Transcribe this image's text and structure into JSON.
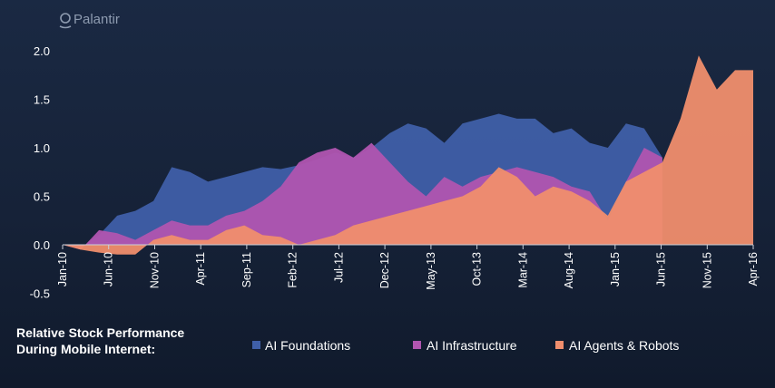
{
  "brand": {
    "logo_text": "Palantir",
    "logo_icon": "palantir-logo-icon"
  },
  "caption": {
    "line1": "Relative Stock Performance",
    "line2": "During Mobile Internet:"
  },
  "colors": {
    "background": "#16233a",
    "ai_foundations": "#3f5fa8",
    "ai_infrastructure": "#b055b0",
    "ai_agents_robots": "#f08e6d"
  },
  "chart_data": {
    "type": "area",
    "title": "",
    "xlabel": "",
    "ylabel": "",
    "ylim": [
      -0.5,
      2.0
    ],
    "y_ticks": [
      "2.0",
      "1.5",
      "1.0",
      "0.5",
      "0.0",
      "-0.5"
    ],
    "y_tick_values": [
      2.0,
      1.5,
      1.0,
      0.5,
      0.0,
      -0.5
    ],
    "x_ticks": [
      "Jan-10",
      "Jun-10",
      "Nov-10",
      "Apr-11",
      "Sep-11",
      "Feb-12",
      "Jul-12",
      "Dec-12",
      "May-13",
      "Oct-13",
      "Mar-14",
      "Aug-14",
      "Jan-15",
      "Jun-15",
      "Nov-15",
      "Apr-16"
    ],
    "x": [
      "Jan-10",
      "Mar-10",
      "May-10",
      "Jul-10",
      "Sep-10",
      "Nov-10",
      "Jan-11",
      "Mar-11",
      "May-11",
      "Jul-11",
      "Sep-11",
      "Nov-11",
      "Jan-12",
      "Mar-12",
      "May-12",
      "Jul-12",
      "Sep-12",
      "Nov-12",
      "Jan-13",
      "Mar-13",
      "May-13",
      "Jul-13",
      "Sep-13",
      "Nov-13",
      "Jan-14",
      "Mar-14",
      "May-14",
      "Jul-14",
      "Sep-14",
      "Nov-14",
      "Jan-15",
      "Mar-15",
      "May-15",
      "Jul-15",
      "Sep-15",
      "Nov-15",
      "Jan-16",
      "Mar-16",
      "Apr-16"
    ],
    "grid": false,
    "legend_position": "bottom",
    "series": [
      {
        "name": "AI Foundations",
        "color": "#3f5fa8",
        "values": [
          0.0,
          -0.03,
          0.1,
          0.3,
          0.35,
          0.45,
          0.8,
          0.75,
          0.65,
          0.7,
          0.75,
          0.8,
          0.78,
          0.82,
          0.88,
          0.95,
          0.9,
          1.0,
          1.15,
          1.25,
          1.2,
          1.05,
          1.25,
          1.3,
          1.35,
          1.3,
          1.3,
          1.15,
          1.2,
          1.05,
          1.0,
          1.25,
          1.2,
          0.9,
          null,
          null,
          null,
          null,
          null
        ]
      },
      {
        "name": "AI Infrastructure",
        "color": "#b055b0",
        "values": [
          0.0,
          -0.05,
          0.15,
          0.12,
          0.05,
          0.15,
          0.25,
          0.2,
          0.2,
          0.3,
          0.35,
          0.45,
          0.6,
          0.85,
          0.95,
          1.0,
          0.9,
          1.05,
          0.85,
          0.65,
          0.5,
          0.7,
          0.6,
          0.7,
          0.75,
          0.8,
          0.75,
          0.7,
          0.6,
          0.55,
          0.25,
          0.65,
          1.0,
          0.9,
          null,
          null,
          null,
          null,
          null
        ]
      },
      {
        "name": "AI Agents & Robots",
        "color": "#f08e6d",
        "values": [
          0.0,
          -0.05,
          -0.08,
          -0.1,
          -0.1,
          0.05,
          0.1,
          0.05,
          0.05,
          0.15,
          0.2,
          0.1,
          0.08,
          0.0,
          0.05,
          0.1,
          0.2,
          0.25,
          0.3,
          0.35,
          0.4,
          0.45,
          0.5,
          0.6,
          0.8,
          0.7,
          0.5,
          0.6,
          0.55,
          0.45,
          0.3,
          0.65,
          0.75,
          0.85,
          1.3,
          1.95,
          1.6,
          1.8,
          1.8
        ]
      }
    ]
  }
}
